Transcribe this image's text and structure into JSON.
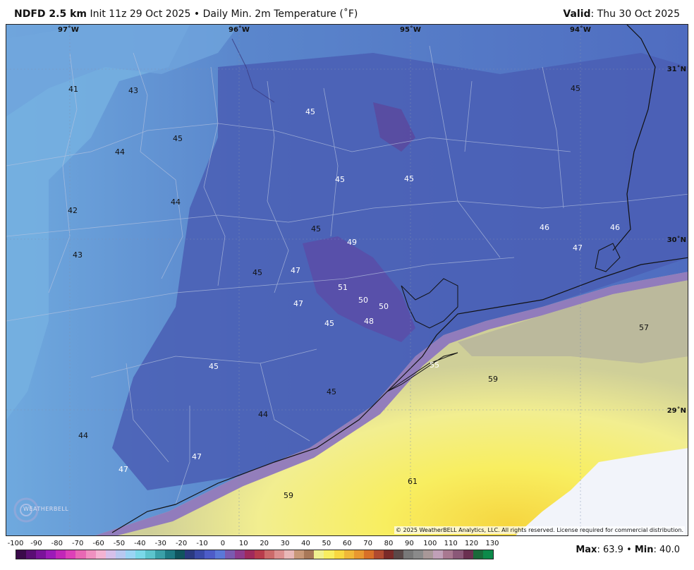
{
  "header": {
    "model": "NDFD 2.5 km",
    "init": "Init 11z 29 Oct 2025",
    "separator": "•",
    "product": "Daily Min. 2m Temperature (˚F)",
    "valid_label": "Valid",
    "valid_value": "Thu 30 Oct 2025"
  },
  "axes": {
    "lon_labels": [
      "97˚W",
      "96˚W",
      "95˚W",
      "94˚W"
    ],
    "lat_labels": [
      "31˚N",
      "30˚N",
      "29˚N"
    ]
  },
  "temperature_labels": [
    {
      "value": "41",
      "tone": "dark"
    },
    {
      "value": "43",
      "tone": "dark"
    },
    {
      "value": "45",
      "tone": "light"
    },
    {
      "value": "45",
      "tone": "dark"
    },
    {
      "value": "44",
      "tone": "dark"
    },
    {
      "value": "45",
      "tone": "dark"
    },
    {
      "value": "42",
      "tone": "dark"
    },
    {
      "value": "44",
      "tone": "dark"
    },
    {
      "value": "45",
      "tone": "light"
    },
    {
      "value": "45",
      "tone": "light"
    },
    {
      "value": "43",
      "tone": "dark"
    },
    {
      "value": "45",
      "tone": "dark"
    },
    {
      "value": "49",
      "tone": "light"
    },
    {
      "value": "46",
      "tone": "light"
    },
    {
      "value": "46",
      "tone": "light"
    },
    {
      "value": "47",
      "tone": "light"
    },
    {
      "value": "45",
      "tone": "dark"
    },
    {
      "value": "47",
      "tone": "light"
    },
    {
      "value": "51",
      "tone": "light"
    },
    {
      "value": "50",
      "tone": "light"
    },
    {
      "value": "50",
      "tone": "light"
    },
    {
      "value": "47",
      "tone": "light"
    },
    {
      "value": "48",
      "tone": "light"
    },
    {
      "value": "45",
      "tone": "light"
    },
    {
      "value": "57",
      "tone": "dark"
    },
    {
      "value": "45",
      "tone": "light"
    },
    {
      "value": "55",
      "tone": "light"
    },
    {
      "value": "59",
      "tone": "dark"
    },
    {
      "value": "45",
      "tone": "dark"
    },
    {
      "value": "44",
      "tone": "dark"
    },
    {
      "value": "44",
      "tone": "dark"
    },
    {
      "value": "47",
      "tone": "light"
    },
    {
      "value": "47",
      "tone": "light"
    },
    {
      "value": "61",
      "tone": "dark"
    },
    {
      "value": "59",
      "tone": "dark"
    }
  ],
  "copyright": "© 2025 WeatherBELL Analytics, LLC. All rights reserved. License required for commercial distribution.",
  "logo": {
    "text": "WEATHERBELL"
  },
  "colorbar": {
    "ticks": [
      "-100",
      "-90",
      "-80",
      "-70",
      "-60",
      "-50",
      "-40",
      "-30",
      "-20",
      "-10",
      "0",
      "10",
      "20",
      "30",
      "40",
      "50",
      "60",
      "70",
      "80",
      "90",
      "100",
      "110",
      "120",
      "130"
    ],
    "colors": [
      "#3a0a4a",
      "#5a0e74",
      "#7a139a",
      "#9c1ab8",
      "#c226b8",
      "#dd40b8",
      "#e868b4",
      "#ef90c0",
      "#f3b3d2",
      "#d6c0ea",
      "#b8c8f0",
      "#9ad4f4",
      "#7ad8e8",
      "#5cc4cc",
      "#3aa0a8",
      "#1e7a84",
      "#10545e",
      "#2a3a80",
      "#3a4aa8",
      "#4d5cc8",
      "#5a78d8",
      "#7a5ab0",
      "#8e3b8c",
      "#a02a5c",
      "#b83c4c",
      "#cc6a6a",
      "#dc9090",
      "#e8b8b8",
      "#c89878",
      "#a87858",
      "#f0f090",
      "#f8ee60",
      "#f8d840",
      "#f0b838",
      "#e89830",
      "#d87028",
      "#b04a30",
      "#7a2a28",
      "#5a4848",
      "#787878",
      "#8a8a8a",
      "#a89898",
      "#c0a0b8",
      "#a87890",
      "#8a5878",
      "#6a3050",
      "#1a6a3a",
      "#0c8a4a"
    ]
  },
  "stats": {
    "max_label": "Max",
    "max_value": "63.9",
    "sep": "•",
    "min_label": "Min",
    "min_value": "40.0"
  }
}
